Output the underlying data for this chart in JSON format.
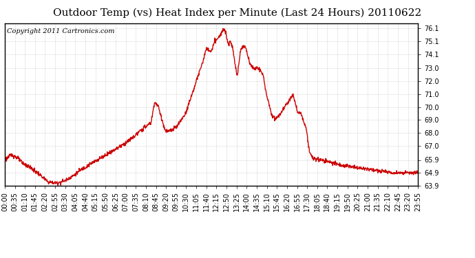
{
  "title": "Outdoor Temp (vs) Heat Index per Minute (Last 24 Hours) 20110622",
  "copyright": "Copyright 2011 Cartronics.com",
  "line_color": "#cc0000",
  "background_color": "#ffffff",
  "grid_color": "#999999",
  "ylim": [
    63.9,
    76.5
  ],
  "yticks": [
    63.9,
    64.9,
    65.9,
    67.0,
    68.0,
    69.0,
    70.0,
    71.0,
    72.0,
    73.0,
    74.1,
    75.1,
    76.1
  ],
  "xtick_labels": [
    "00:00",
    "00:35",
    "01:10",
    "01:45",
    "02:20",
    "02:55",
    "03:30",
    "04:05",
    "04:40",
    "05:15",
    "05:50",
    "06:25",
    "07:00",
    "07:35",
    "08:10",
    "08:45",
    "09:20",
    "09:55",
    "10:30",
    "11:05",
    "11:40",
    "12:15",
    "12:50",
    "13:25",
    "14:00",
    "14:35",
    "15:10",
    "15:45",
    "16:20",
    "16:55",
    "17:30",
    "18:05",
    "18:40",
    "19:15",
    "19:50",
    "20:25",
    "21:00",
    "21:35",
    "22:10",
    "22:45",
    "23:20",
    "23:55"
  ],
  "title_fontsize": 11,
  "tick_fontsize": 7,
  "copyright_fontsize": 7,
  "linewidth": 1.0
}
